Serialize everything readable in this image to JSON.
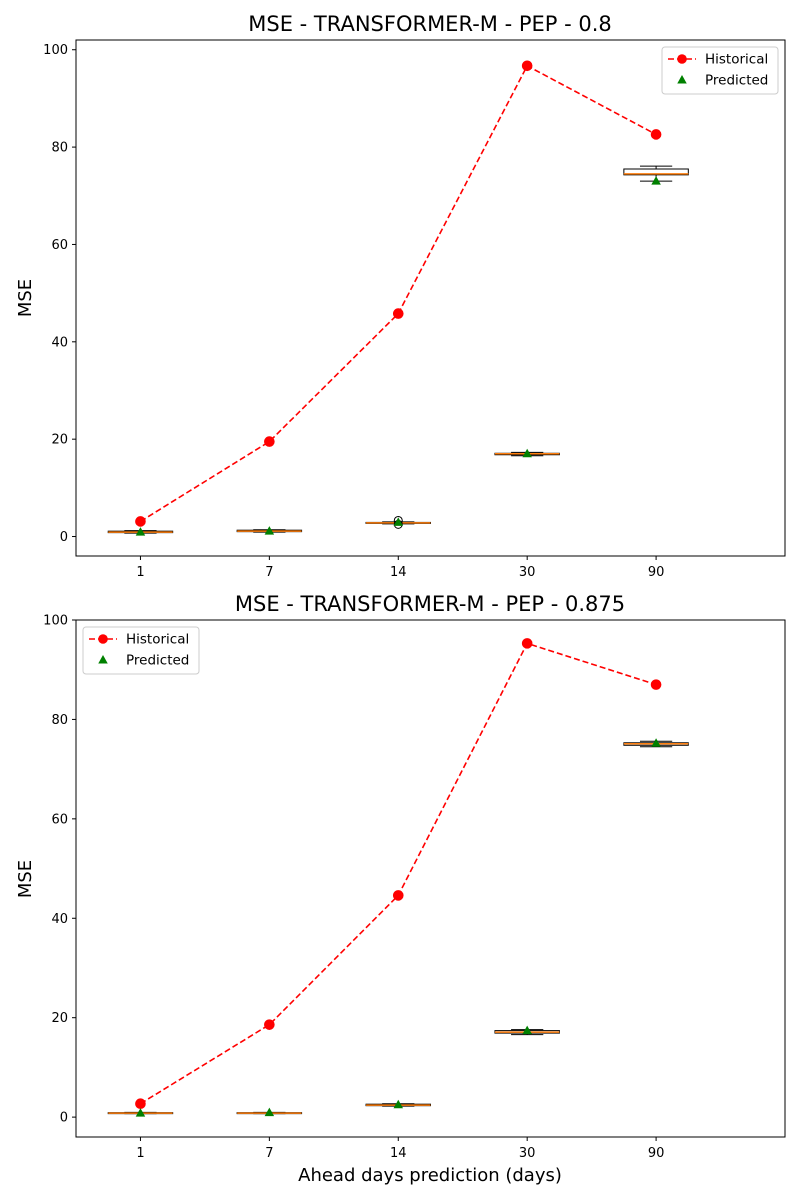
{
  "chart_data": [
    {
      "type": "box+line",
      "title": "MSE - TRANSFORMER-M - PEP - 0.8",
      "xlabel": "",
      "ylabel": "MSE",
      "categories": [
        "1",
        "7",
        "14",
        "30",
        "90"
      ],
      "ylim": [
        -4,
        102
      ],
      "yticks": [
        0,
        20,
        40,
        60,
        80,
        100
      ],
      "legend": {
        "position": "top-right",
        "entries": [
          "Historical",
          "Predicted"
        ]
      },
      "historical": {
        "name": "Historical",
        "color": "#ff0000",
        "values": [
          3.1,
          19.5,
          45.8,
          96.7,
          82.6
        ]
      },
      "predicted": {
        "name": "Predicted",
        "color": "#008000",
        "values": [
          0.9,
          1.1,
          2.9,
          17.0,
          73.0
        ]
      },
      "boxes": [
        {
          "whislo": 0.7,
          "q1": 0.8,
          "med": 0.9,
          "q3": 1.1,
          "whishi": 1.2,
          "fliers": []
        },
        {
          "whislo": 0.9,
          "q1": 1.0,
          "med": 1.1,
          "q3": 1.3,
          "whishi": 1.4,
          "fliers": []
        },
        {
          "whislo": 2.6,
          "q1": 2.7,
          "med": 2.8,
          "q3": 2.9,
          "whishi": 3.0,
          "fliers": [
            2.5,
            3.3
          ]
        },
        {
          "whislo": 16.6,
          "q1": 16.8,
          "med": 17.0,
          "q3": 17.1,
          "whishi": 17.3,
          "fliers": []
        },
        {
          "whislo": 73.0,
          "q1": 74.3,
          "med": 74.5,
          "q3": 75.5,
          "whishi": 76.1,
          "fliers": []
        }
      ]
    },
    {
      "type": "box+line",
      "title": "MSE - TRANSFORMER-M - PEP - 0.875",
      "xlabel": "Ahead days prediction (days)",
      "ylabel": "MSE",
      "categories": [
        "1",
        "7",
        "14",
        "30",
        "90"
      ],
      "ylim": [
        -4,
        100
      ],
      "yticks": [
        0,
        20,
        40,
        60,
        80,
        100
      ],
      "legend": {
        "position": "top-left",
        "entries": [
          "Historical",
          "Predicted"
        ]
      },
      "historical": {
        "name": "Historical",
        "color": "#ff0000",
        "values": [
          2.7,
          18.6,
          44.6,
          95.3,
          87.0
        ]
      },
      "predicted": {
        "name": "Predicted",
        "color": "#008000",
        "values": [
          0.8,
          0.9,
          2.5,
          17.4,
          75.2
        ]
      },
      "boxes": [
        {
          "whislo": 0.7,
          "q1": 0.75,
          "med": 0.8,
          "q3": 0.9,
          "whishi": 0.95,
          "fliers": []
        },
        {
          "whislo": 0.7,
          "q1": 0.75,
          "med": 0.8,
          "q3": 0.9,
          "whishi": 0.95,
          "fliers": []
        },
        {
          "whislo": 2.2,
          "q1": 2.3,
          "med": 2.4,
          "q3": 2.6,
          "whishi": 2.7,
          "fliers": []
        },
        {
          "whislo": 16.6,
          "q1": 16.9,
          "med": 17.1,
          "q3": 17.4,
          "whishi": 17.6,
          "fliers": []
        },
        {
          "whislo": 74.5,
          "q1": 74.8,
          "med": 75.1,
          "q3": 75.3,
          "whishi": 75.6,
          "fliers": []
        }
      ]
    }
  ]
}
